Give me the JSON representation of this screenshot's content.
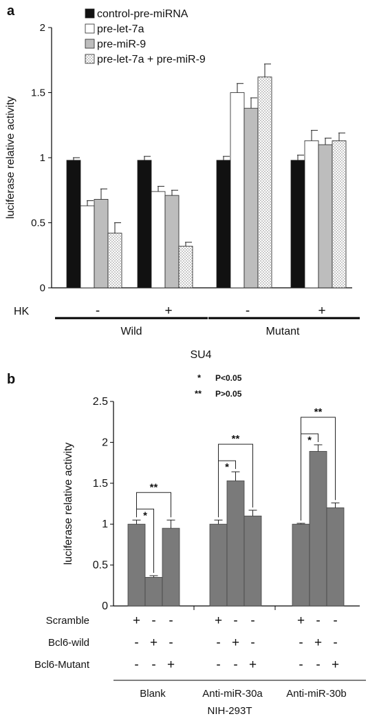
{
  "chart_data": [
    {
      "panel": "a",
      "type": "bar",
      "ylabel": "luciferase relative activity",
      "ylim": [
        0,
        2
      ],
      "yticks": [
        "0",
        "0.5",
        "1",
        "1.5",
        "2"
      ],
      "legend": "top-left",
      "condition_label": "HK",
      "condition_values": [
        "-",
        "+",
        "-",
        "+"
      ],
      "group_labels": [
        "Wild",
        "Mutant"
      ],
      "xlabel": "SU4",
      "categories": [
        "Wild HK-",
        "Wild HK+",
        "Mutant HK-",
        "Mutant HK+"
      ],
      "series": [
        {
          "name": "control-pre-miRNA",
          "values": [
            0.98,
            0.98,
            0.98,
            0.98
          ],
          "errors": [
            0.02,
            0.03,
            0.03,
            0.04
          ]
        },
        {
          "name": "pre-let-7a",
          "values": [
            0.63,
            0.74,
            1.5,
            1.13
          ],
          "errors": [
            0.04,
            0.04,
            0.07,
            0.08
          ]
        },
        {
          "name": "pre-miR-9",
          "values": [
            0.68,
            0.71,
            1.38,
            1.1
          ],
          "errors": [
            0.08,
            0.04,
            0.08,
            0.05
          ]
        },
        {
          "name": "pre-let-7a + pre-miR-9",
          "values": [
            0.42,
            0.32,
            1.62,
            1.13
          ],
          "errors": [
            0.08,
            0.03,
            0.1,
            0.06
          ]
        }
      ],
      "colors": {
        "control": "#111111",
        "let7a": "#ffffff",
        "mir9": "#bdbdbd",
        "combo": "#e6e6e6"
      }
    },
    {
      "panel": "b",
      "type": "bar",
      "ylabel": "luciferase relative activity",
      "ylim": [
        0,
        2.5
      ],
      "yticks": [
        "0",
        "0.5",
        "1",
        "1.5",
        "2",
        "2.5"
      ],
      "notes": [
        {
          "mark": "*",
          "text": "P<0.05"
        },
        {
          "mark": "**",
          "text": "P>0.05"
        }
      ],
      "groups": [
        {
          "name": "Blank",
          "values": [
            1.0,
            0.35,
            0.95
          ],
          "errors": [
            0.05,
            0.02,
            0.1
          ]
        },
        {
          "name": "Anti-miR-30a",
          "values": [
            1.0,
            1.53,
            1.1
          ],
          "errors": [
            0.05,
            0.11,
            0.07
          ]
        },
        {
          "name": "Anti-miR-30b",
          "values": [
            1.0,
            1.89,
            1.2
          ],
          "errors": [
            0.01,
            0.08,
            0.06
          ]
        }
      ],
      "condition_rows": [
        {
          "label": "Scramble",
          "marks": [
            "+",
            "-",
            "-"
          ]
        },
        {
          "label": "Bcl6-wild",
          "marks": [
            "-",
            "+",
            "-"
          ]
        },
        {
          "label": "Bcl6-Mutant",
          "marks": [
            "-",
            "-",
            "+"
          ]
        }
      ],
      "xlabel": "NIH-293T",
      "bar_color": "#7a7a7a"
    }
  ],
  "panel_labels": [
    "a",
    "b"
  ]
}
